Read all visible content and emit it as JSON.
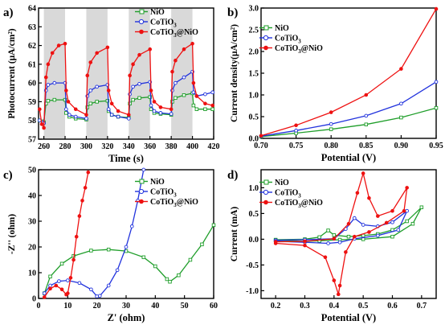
{
  "chart_data": [
    {
      "panel_label": "a)",
      "type": "line",
      "xlabel": "Time (s)",
      "ylabel": "Photocurrent (μA/cm²)",
      "xlim": [
        255,
        420
      ],
      "ylim": [
        57,
        64
      ],
      "xticks": [
        260,
        280,
        300,
        320,
        340,
        360,
        380,
        400,
        420
      ],
      "yticks": [
        57,
        58,
        59,
        60,
        61,
        62,
        63,
        64
      ],
      "light_off_bands": [
        [
          260,
          280
        ],
        [
          300,
          320
        ],
        [
          340,
          360
        ],
        [
          380,
          400
        ]
      ],
      "legend": {
        "position": "top-right"
      },
      "series": [
        {
          "name": "NiO",
          "color": "#1f9e2a",
          "marker": "open-square",
          "points": [
            [
              256,
              58.0
            ],
            [
              259,
              57.95
            ],
            [
              260,
              57.9
            ],
            [
              262,
              58.9
            ],
            [
              264,
              59.05
            ],
            [
              270,
              59.1
            ],
            [
              280,
              59.1
            ],
            [
              281,
              58.4
            ],
            [
              284,
              58.2
            ],
            [
              290,
              58.1
            ],
            [
              300,
              58.05
            ],
            [
              301,
              58.7
            ],
            [
              304,
              58.9
            ],
            [
              310,
              59.0
            ],
            [
              320,
              59.05
            ],
            [
              321,
              58.5
            ],
            [
              324,
              58.3
            ],
            [
              330,
              58.2
            ],
            [
              340,
              58.15
            ],
            [
              341,
              58.9
            ],
            [
              344,
              59.1
            ],
            [
              350,
              59.2
            ],
            [
              360,
              59.25
            ],
            [
              361,
              58.6
            ],
            [
              364,
              58.4
            ],
            [
              370,
              58.35
            ],
            [
              380,
              58.3
            ],
            [
              381,
              59.0
            ],
            [
              384,
              59.2
            ],
            [
              392,
              59.35
            ],
            [
              400,
              59.45
            ],
            [
              401,
              58.8
            ],
            [
              404,
              58.6
            ],
            [
              412,
              58.6
            ],
            [
              419,
              58.6
            ]
          ]
        },
        {
          "name": "CoTiO₃",
          "color": "#2233dd",
          "marker": "open-circle",
          "points": [
            [
              256,
              58.0
            ],
            [
              259,
              57.9
            ],
            [
              260,
              57.85
            ],
            [
              262,
              59.6
            ],
            [
              264,
              59.9
            ],
            [
              270,
              60.0
            ],
            [
              280,
              60.0
            ],
            [
              281,
              58.6
            ],
            [
              284,
              58.3
            ],
            [
              290,
              58.2
            ],
            [
              300,
              58.1
            ],
            [
              301,
              59.3
            ],
            [
              304,
              59.6
            ],
            [
              310,
              59.8
            ],
            [
              320,
              59.9
            ],
            [
              321,
              58.6
            ],
            [
              324,
              58.3
            ],
            [
              330,
              58.2
            ],
            [
              340,
              58.1
            ],
            [
              341,
              59.4
            ],
            [
              344,
              59.8
            ],
            [
              350,
              59.95
            ],
            [
              360,
              60.05
            ],
            [
              361,
              58.8
            ],
            [
              364,
              58.5
            ],
            [
              370,
              58.4
            ],
            [
              380,
              58.35
            ],
            [
              381,
              59.6
            ],
            [
              384,
              60.0
            ],
            [
              392,
              60.3
            ],
            [
              400,
              60.6
            ],
            [
              401,
              59.5
            ],
            [
              404,
              59.3
            ],
            [
              412,
              59.4
            ],
            [
              419,
              59.5
            ]
          ]
        },
        {
          "name": "CoTiO₃@NiO",
          "color": "#ee1111",
          "marker": "filled-circle",
          "points": [
            [
              256,
              58.6
            ],
            [
              258,
              57.8
            ],
            [
              260,
              57.6
            ],
            [
              262,
              60.3
            ],
            [
              264,
              61.0
            ],
            [
              268,
              61.6
            ],
            [
              274,
              62.0
            ],
            [
              280,
              62.1
            ],
            [
              281,
              59.6
            ],
            [
              283,
              59.0
            ],
            [
              290,
              58.6
            ],
            [
              300,
              58.3
            ],
            [
              301,
              60.4
            ],
            [
              304,
              61.1
            ],
            [
              310,
              61.6
            ],
            [
              320,
              61.9
            ],
            [
              321,
              59.6
            ],
            [
              324,
              58.9
            ],
            [
              330,
              58.5
            ],
            [
              340,
              58.3
            ],
            [
              341,
              60.4
            ],
            [
              344,
              61.0
            ],
            [
              350,
              61.5
            ],
            [
              360,
              61.8
            ],
            [
              361,
              59.6
            ],
            [
              364,
              59.0
            ],
            [
              370,
              58.7
            ],
            [
              380,
              58.6
            ],
            [
              381,
              60.6
            ],
            [
              384,
              61.2
            ],
            [
              392,
              61.8
            ],
            [
              400,
              62.1
            ],
            [
              401,
              60.0
            ],
            [
              404,
              59.3
            ],
            [
              412,
              58.9
            ],
            [
              419,
              58.8
            ]
          ]
        }
      ]
    },
    {
      "panel_label": "b)",
      "type": "line",
      "xlabel": "Potential (V)",
      "ylabel": "Current density(μA/cm²)",
      "xlim": [
        0.7,
        0.95
      ],
      "ylim": [
        0.0,
        3.0
      ],
      "xticks": [
        0.7,
        0.75,
        0.8,
        0.85,
        0.9,
        0.95
      ],
      "yticks": [
        0.0,
        0.5,
        1.0,
        1.5,
        2.0,
        2.5,
        3.0
      ],
      "legend": {
        "position": "top-left"
      },
      "series": [
        {
          "name": "NiO",
          "color": "#1f9e2a",
          "marker": "open-square",
          "points": [
            [
              0.7,
              0.04
            ],
            [
              0.75,
              0.12
            ],
            [
              0.8,
              0.21
            ],
            [
              0.85,
              0.32
            ],
            [
              0.9,
              0.48
            ],
            [
              0.95,
              0.7
            ]
          ]
        },
        {
          "name": "CoTiO₃",
          "color": "#2233dd",
          "marker": "open-circle",
          "points": [
            [
              0.7,
              0.05
            ],
            [
              0.75,
              0.18
            ],
            [
              0.8,
              0.33
            ],
            [
              0.85,
              0.52
            ],
            [
              0.9,
              0.8
            ],
            [
              0.95,
              1.3
            ]
          ]
        },
        {
          "name": "CoTiO₃@NiO",
          "color": "#ee1111",
          "marker": "filled-circle",
          "points": [
            [
              0.7,
              0.06
            ],
            [
              0.75,
              0.3
            ],
            [
              0.8,
              0.6
            ],
            [
              0.85,
              1.0
            ],
            [
              0.9,
              1.6
            ],
            [
              0.95,
              2.98
            ]
          ]
        }
      ]
    },
    {
      "panel_label": "c)",
      "type": "line",
      "xlabel": "Z' (ohm)",
      "ylabel": "-Z'' (ohm)",
      "xlim": [
        0,
        60
      ],
      "ylim": [
        0,
        50
      ],
      "xticks": [
        0,
        10,
        20,
        30,
        40,
        50,
        60
      ],
      "yticks": [
        0,
        10,
        20,
        30,
        40,
        50
      ],
      "legend": {
        "position": "top-right"
      },
      "series": [
        {
          "name": "NiO",
          "color": "#1f9e2a",
          "marker": "open-square",
          "points": [
            [
              2,
              2
            ],
            [
              4,
              8.5
            ],
            [
              8,
              13.5
            ],
            [
              12,
              16.5
            ],
            [
              18,
              18.6
            ],
            [
              24,
              19
            ],
            [
              30,
              18.4
            ],
            [
              36,
              16
            ],
            [
              40,
              12.5
            ],
            [
              44,
              7.5
            ],
            [
              45,
              6.5
            ],
            [
              48,
              9
            ],
            [
              52,
              15
            ],
            [
              56,
              21
            ],
            [
              60,
              28.5
            ]
          ]
        },
        {
          "name": "CoTiO₃",
          "color": "#2233dd",
          "marker": "open-circle",
          "points": [
            [
              2,
              2
            ],
            [
              4,
              5
            ],
            [
              7,
              6.7
            ],
            [
              10,
              7
            ],
            [
              14,
              6
            ],
            [
              18,
              3.5
            ],
            [
              20,
              0.8
            ],
            [
              21,
              1
            ],
            [
              24,
              5
            ],
            [
              27,
              11
            ],
            [
              30,
              20
            ],
            [
              32,
              28
            ],
            [
              34,
              38
            ],
            [
              36,
              50
            ]
          ]
        },
        {
          "name": "CoTiO₃@NiO",
          "color": "#ee1111",
          "marker": "filled-circle",
          "points": [
            [
              2,
              0.5
            ],
            [
              4,
              3.8
            ],
            [
              6,
              5
            ],
            [
              8,
              3.5
            ],
            [
              9.5,
              1.5
            ],
            [
              10,
              2
            ],
            [
              11,
              8
            ],
            [
              12,
              15
            ],
            [
              13,
              24
            ],
            [
              14,
              32
            ],
            [
              15,
              38
            ],
            [
              16,
              43
            ],
            [
              17,
              49
            ]
          ]
        }
      ]
    },
    {
      "panel_label": "d)",
      "type": "line",
      "xlabel": "Potential (V)",
      "ylabel": "Current (mA)",
      "xlim": [
        0.15,
        0.75
      ],
      "ylim": [
        -1.15,
        1.35
      ],
      "xticks": [
        0.2,
        0.3,
        0.4,
        0.5,
        0.6,
        0.7
      ],
      "yticks": [
        -1.0,
        -0.5,
        0.0,
        0.5,
        1.0
      ],
      "legend": {
        "position": "top-left"
      },
      "series": [
        {
          "name": "NiO",
          "color": "#1f9e2a",
          "marker": "open-square",
          "points": [
            [
              0.2,
              -0.01
            ],
            [
              0.3,
              0.0
            ],
            [
              0.35,
              0.04
            ],
            [
              0.38,
              0.17
            ],
            [
              0.4,
              0.08
            ],
            [
              0.45,
              0.05
            ],
            [
              0.5,
              0.07
            ],
            [
              0.55,
              0.1
            ],
            [
              0.6,
              0.18
            ],
            [
              0.65,
              0.35
            ],
            [
              0.7,
              0.62
            ],
            [
              0.67,
              0.3
            ],
            [
              0.6,
              0.05
            ],
            [
              0.5,
              0.0
            ],
            [
              0.42,
              -0.01
            ],
            [
              0.35,
              -0.03
            ],
            [
              0.3,
              -0.04
            ],
            [
              0.2,
              -0.02
            ]
          ]
        },
        {
          "name": "CoTiO₃",
          "color": "#2233dd",
          "marker": "open-circle",
          "points": [
            [
              0.2,
              -0.02
            ],
            [
              0.3,
              -0.01
            ],
            [
              0.4,
              0.01
            ],
            [
              0.44,
              0.2
            ],
            [
              0.47,
              0.41
            ],
            [
              0.5,
              0.28
            ],
            [
              0.55,
              0.25
            ],
            [
              0.6,
              0.33
            ],
            [
              0.65,
              0.55
            ],
            [
              0.62,
              0.18
            ],
            [
              0.55,
              0.07
            ],
            [
              0.47,
              0.01
            ],
            [
              0.42,
              -0.06
            ],
            [
              0.38,
              -0.08
            ],
            [
              0.3,
              -0.06
            ],
            [
              0.2,
              -0.04
            ]
          ]
        },
        {
          "name": "CoTiO₃@NiO",
          "color": "#ee1111",
          "marker": "filled-circle",
          "points": [
            [
              0.2,
              -0.05
            ],
            [
              0.3,
              -0.04
            ],
            [
              0.4,
              0.01
            ],
            [
              0.45,
              0.3
            ],
            [
              0.48,
              0.9
            ],
            [
              0.5,
              1.28
            ],
            [
              0.52,
              0.8
            ],
            [
              0.55,
              0.45
            ],
            [
              0.6,
              0.55
            ],
            [
              0.65,
              1.0
            ],
            [
              0.64,
              0.55
            ],
            [
              0.58,
              0.32
            ],
            [
              0.52,
              0.14
            ],
            [
              0.47,
              0.05
            ],
            [
              0.44,
              -0.25
            ],
            [
              0.42,
              -0.9
            ],
            [
              0.415,
              -1.07
            ],
            [
              0.4,
              -0.8
            ],
            [
              0.37,
              -0.35
            ],
            [
              0.3,
              -0.12
            ],
            [
              0.2,
              -0.08
            ]
          ]
        }
      ]
    }
  ]
}
